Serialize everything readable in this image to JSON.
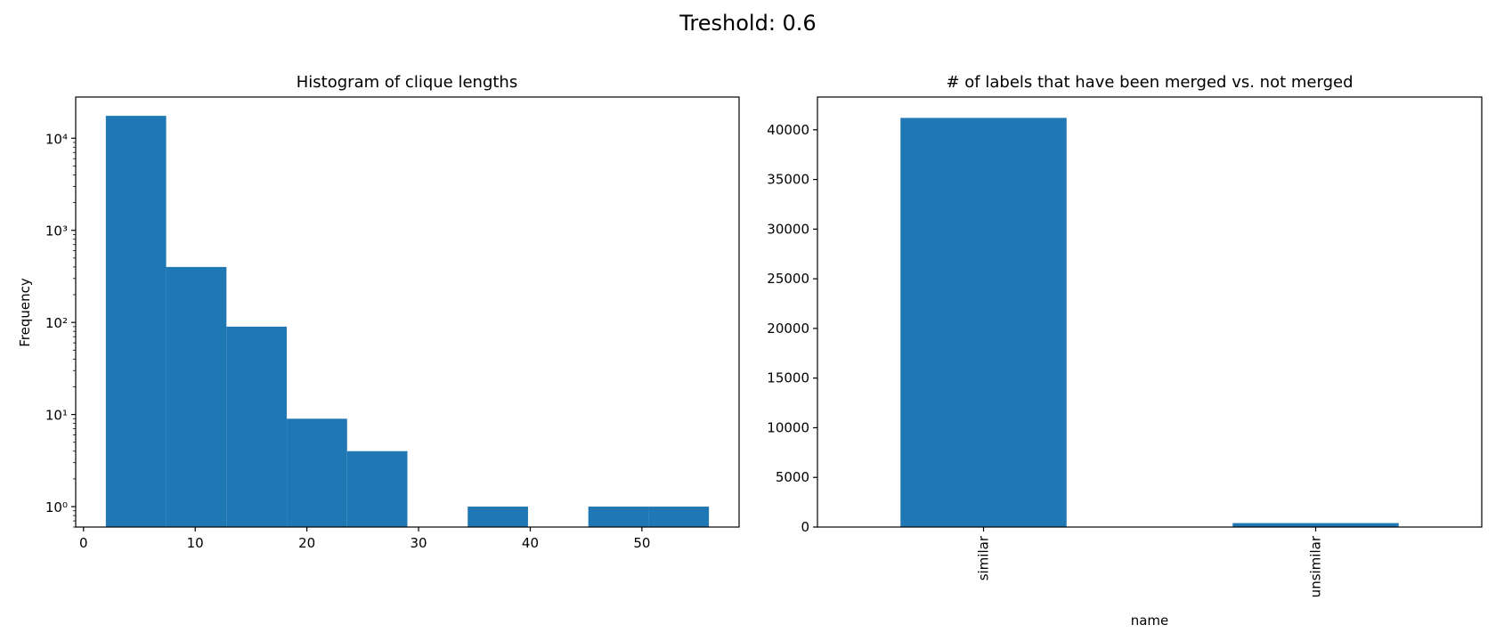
{
  "figure": {
    "suptitle": "Treshold: 0.6"
  },
  "chart_data": [
    {
      "type": "bar",
      "subtype": "histogram",
      "title": "Histogram of clique lengths",
      "xlabel": "",
      "ylabel": "Frequency",
      "yscale": "log",
      "xlim": [
        -0.7,
        58.7
      ],
      "ylim": [
        0.6,
        28000
      ],
      "xticks": [
        0,
        10,
        20,
        30,
        40,
        50
      ],
      "yticks": [
        {
          "value": 1,
          "label": "10⁰"
        },
        {
          "value": 10,
          "label": "10¹"
        },
        {
          "value": 100,
          "label": "10²"
        },
        {
          "value": 1000,
          "label": "10³"
        },
        {
          "value": 10000,
          "label": "10⁴"
        }
      ],
      "bins": [
        {
          "x0": 2,
          "x1": 7.4,
          "count": 17500
        },
        {
          "x0": 7.4,
          "x1": 12.8,
          "count": 400
        },
        {
          "x0": 12.8,
          "x1": 18.2,
          "count": 90
        },
        {
          "x0": 18.2,
          "x1": 23.6,
          "count": 9
        },
        {
          "x0": 23.6,
          "x1": 29,
          "count": 4
        },
        {
          "x0": 29,
          "x1": 34.4,
          "count": 0
        },
        {
          "x0": 34.4,
          "x1": 39.8,
          "count": 1
        },
        {
          "x0": 39.8,
          "x1": 45.2,
          "count": 0
        },
        {
          "x0": 45.2,
          "x1": 50.6,
          "count": 1
        },
        {
          "x0": 50.6,
          "x1": 56,
          "count": 1
        }
      ],
      "color": "#1f77b4",
      "grid": false
    },
    {
      "type": "bar",
      "title": "# of labels that have been merged vs. not merged",
      "xlabel": "name",
      "ylabel": "",
      "categories": [
        "similar",
        "unsimilar"
      ],
      "values": [
        41200,
        400
      ],
      "ylim": [
        0,
        43300
      ],
      "yticks": [
        0,
        5000,
        10000,
        15000,
        20000,
        25000,
        30000,
        35000,
        40000
      ],
      "color": "#1f77b4",
      "grid": false
    }
  ]
}
